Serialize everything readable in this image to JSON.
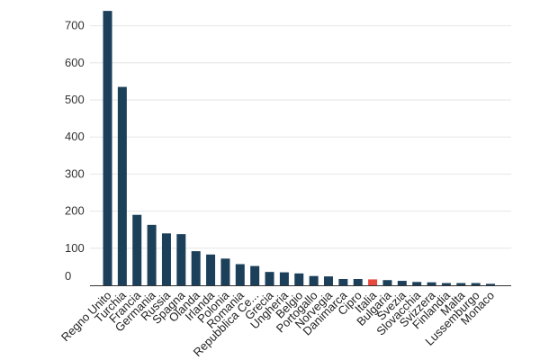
{
  "chart_data": {
    "type": "bar",
    "title": "",
    "xlabel": "",
    "ylabel": "",
    "ylim": [
      0,
      750
    ],
    "yticks": [
      0,
      100,
      200,
      300,
      400,
      500,
      600,
      700
    ],
    "grid": true,
    "default_color": "#1c3f5a",
    "highlight_color": "#e8493f",
    "highlight_category": "Italia",
    "categories": [
      "Regno Unito",
      "Turchia",
      "Francia",
      "Germania",
      "Russia",
      "Spagna",
      "Olanda",
      "Irlanda",
      "Polonia",
      "Romania",
      "Repubblica Ce...",
      "Grecia",
      "Ungheria",
      "Belgio",
      "Portogallo",
      "Norvegia",
      "Danimarca",
      "Cipro",
      "Italia",
      "Bulgaria",
      "Svezia",
      "Slovacchia",
      "Svizzera",
      "Finlandia",
      "Malta",
      "Lussemburgo",
      "Monaco"
    ],
    "values": [
      740,
      535,
      190,
      163,
      140,
      138,
      92,
      83,
      72,
      57,
      52,
      36,
      35,
      32,
      25,
      24,
      17,
      17,
      16,
      14,
      12,
      9,
      8,
      6,
      6,
      6,
      4
    ]
  }
}
